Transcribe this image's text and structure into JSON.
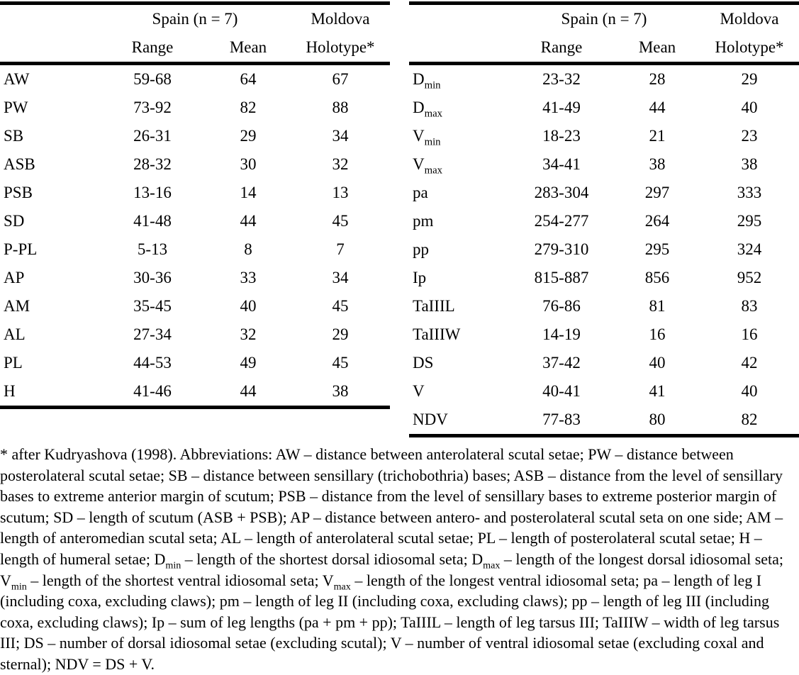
{
  "tables": [
    {
      "name": "left-measurements-table",
      "headers": {
        "spain_group": "Spain (n = 7)",
        "moldova_group": "Moldova",
        "range": "Range",
        "mean": "Mean",
        "holotype": "Holotype*"
      },
      "rows": [
        {
          "label": "AW",
          "range": "59-68",
          "mean": "64",
          "holotype": "67"
        },
        {
          "label": "PW",
          "range": "73-92",
          "mean": "82",
          "holotype": "88"
        },
        {
          "label": "SB",
          "range": "26-31",
          "mean": "29",
          "holotype": "34"
        },
        {
          "label": "ASB",
          "range": "28-32",
          "mean": "30",
          "holotype": "32"
        },
        {
          "label": "PSB",
          "range": "13-16",
          "mean": "14",
          "holotype": "13"
        },
        {
          "label": "SD",
          "range": "41-48",
          "mean": "44",
          "holotype": "45"
        },
        {
          "label": "P-PL",
          "range": "5-13",
          "mean": "8",
          "holotype": "7"
        },
        {
          "label": "AP",
          "range": "30-36",
          "mean": "33",
          "holotype": "34"
        },
        {
          "label": "AM",
          "range": "35-45",
          "mean": "40",
          "holotype": "45"
        },
        {
          "label": "AL",
          "range": "27-34",
          "mean": "32",
          "holotype": "29"
        },
        {
          "label": "PL",
          "range": "44-53",
          "mean": "49",
          "holotype": "45"
        },
        {
          "label": "H",
          "range": "41-46",
          "mean": "44",
          "holotype": "38"
        }
      ]
    },
    {
      "name": "right-measurements-table",
      "headers": {
        "spain_group": "Spain (n = 7)",
        "moldova_group": "Moldova",
        "range": "Range",
        "mean": "Mean",
        "holotype": "Holotype*"
      },
      "rows": [
        {
          "label": "D_{min}",
          "range": "23-32",
          "mean": "28",
          "holotype": "29"
        },
        {
          "label": "D_{max}",
          "range": "41-49",
          "mean": "44",
          "holotype": "40"
        },
        {
          "label": "V_{min}",
          "range": "18-23",
          "mean": "21",
          "holotype": "23"
        },
        {
          "label": "V_{max}",
          "range": "34-41",
          "mean": "38",
          "holotype": "38"
        },
        {
          "label": "pa",
          "range": "283-304",
          "mean": "297",
          "holotype": "333"
        },
        {
          "label": "pm",
          "range": "254-277",
          "mean": "264",
          "holotype": "295"
        },
        {
          "label": "pp",
          "range": "279-310",
          "mean": "295",
          "holotype": "324"
        },
        {
          "label": "Ip",
          "range": "815-887",
          "mean": "856",
          "holotype": "952"
        },
        {
          "label": "TaIIIL",
          "range": "76-86",
          "mean": "81",
          "holotype": "83"
        },
        {
          "label": "TaIIIW",
          "range": "14-19",
          "mean": "16",
          "holotype": "16"
        },
        {
          "label": "DS",
          "range": "37-42",
          "mean": "40",
          "holotype": "42"
        },
        {
          "label": "V",
          "range": "40-41",
          "mean": "41",
          "holotype": "40"
        },
        {
          "label": "NDV",
          "range": "77-83",
          "mean": "80",
          "holotype": "82"
        }
      ]
    }
  ],
  "footnote_text": "* after Kudryashova (1998). Abbreviations: AW – distance between anterolateral scutal setae; PW – distance between posterolateral scutal setae; SB – distance between sensillary (trichobothria) bases; ASB – distance from the level of sensillary bases to extreme anterior margin of scutum; PSB – distance from the level of sensillary bases to extreme posterior margin of scutum; SD – length of scutum (ASB + PSB); AP – distance between antero- and posterolateral scutal seta on one side; AM – length of anteromedian scutal seta; AL – length of anterolateral scutal setae; PL – length of posterolateral scutal setae; H – length of humeral setae; D_{min} – length of the shortest dorsal idiosomal seta; D_{max} – length of the longest dorsal idiosomal seta; V_{min} – length of the shortest ventral idiosomal seta; V_{max} – length of the longest ventral idiosomal seta; pa – length of leg I (including coxa, excluding claws); pm – length of leg II (including coxa, excluding claws); pp – length of leg III (including coxa, excluding claws); Ip – sum of leg lengths (pa + pm + pp); TaIIIL – length of leg tarsus III; TaIIIW – width of leg tarsus III; DS – number of dorsal idiosomal setae (excluding scutal); V – number of ventral idiosomal setae (excluding coxal and sternal); NDV = DS + V.",
  "colors": {
    "text": "#000000",
    "background": "#ffffff",
    "rule": "#000000"
  }
}
